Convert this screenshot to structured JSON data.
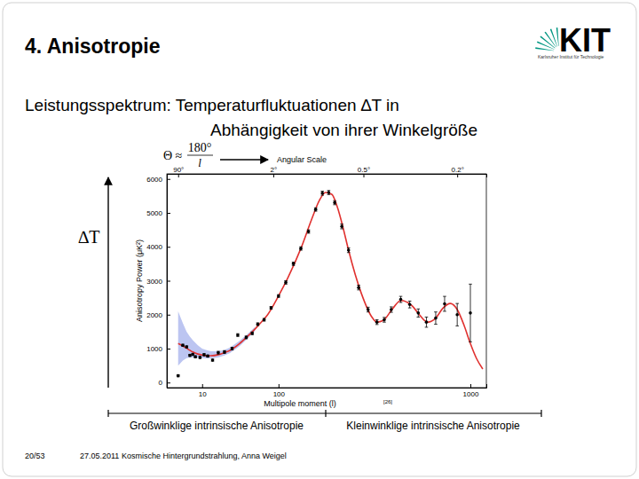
{
  "slide": {
    "title": "4. Anisotropie",
    "subtitle_lines": [
      "Leistungsspektrum: Temperaturfluktuationen ∆T in",
      "Abhängigkeit von ihrer Winkelgröße"
    ],
    "logo": {
      "text": "KIT",
      "caption": "Karlsruher Institut für Technologie"
    },
    "arrow_label": "∆T",
    "scale_labels": [
      "Großwinklige intrinsische Anisotropie",
      "Kleinwinklige intrinsische Anisotropie"
    ],
    "footer": {
      "page": "20/53",
      "text": "27.05.2011 Kosmische Hintergrundstrahlung, Anna Weigel"
    }
  },
  "chart_data": {
    "type": "line",
    "xlabel": "Multipole moment (l)",
    "ylabel": "Anisotropy Power (μK²)",
    "x2label": "Angular Scale",
    "annotations": {
      "formula_left": "Θ ≈",
      "formula_num": "180°",
      "formula_den": "l",
      "source": "[26]"
    },
    "xlim": [
      0.5,
      1130
    ],
    "xticks": [
      10,
      100,
      1000
    ],
    "x2lim": [
      0.5,
      1130
    ],
    "x2ticks": [
      {
        "value": 2,
        "label": "90°"
      },
      {
        "value": 90,
        "label": "2°"
      },
      {
        "value": 360,
        "label": "0.5°"
      },
      {
        "value": 900,
        "label": "0.2°"
      }
    ],
    "ylim": [
      -150,
      6150
    ],
    "yticks": [
      0,
      1000,
      2000,
      3000,
      4000,
      5000,
      6000
    ],
    "grid": false,
    "series": [
      {
        "type": "scatter",
        "color": "#000000",
        "marker": "circle",
        "x": [
          2,
          3,
          4,
          5,
          6,
          7,
          9,
          11,
          13,
          16,
          20,
          25,
          32,
          38,
          48,
          56,
          64,
          74,
          86,
          100,
          115,
          132,
          150,
          170,
          190,
          210,
          230,
          250,
          275,
          300,
          340,
          380,
          420,
          455,
          490,
          540,
          590,
          640,
          690,
          750,
          810,
          900,
          1000
        ],
        "values": [
          200,
          1100,
          1050,
          800,
          830,
          760,
          740,
          820,
          780,
          660,
          880,
          900,
          1000,
          1400,
          1330,
          1450,
          1720,
          1850,
          2200,
          2550,
          2950,
          3500,
          3950,
          4450,
          5100,
          5580,
          5600,
          5300,
          4600,
          3900,
          2800,
          2150,
          1780,
          1850,
          2150,
          2450,
          2300,
          2050,
          1780,
          1900,
          2320,
          2000,
          2050
        ],
        "errors": [
          30,
          30,
          30,
          30,
          30,
          30,
          30,
          30,
          30,
          30,
          40,
          40,
          40,
          40,
          40,
          40,
          40,
          40,
          40,
          40,
          50,
          50,
          50,
          50,
          50,
          60,
          60,
          60,
          70,
          70,
          70,
          70,
          70,
          70,
          80,
          90,
          100,
          120,
          150,
          180,
          220,
          330,
          850
        ]
      },
      {
        "type": "line",
        "color": "#e0312f",
        "line_style": "solid",
        "x": [
          2,
          3,
          4,
          5,
          6,
          8,
          10,
          12,
          15,
          20,
          25,
          30,
          40,
          50,
          60,
          70,
          80,
          100,
          120,
          150,
          180,
          200,
          220,
          240,
          260,
          280,
          300,
          350,
          400,
          420,
          450,
          500,
          540,
          600,
          650,
          680,
          700,
          750,
          800,
          850,
          900,
          950,
          1000,
          1050,
          1100
        ],
        "values": [
          1150,
          1080,
          1010,
          950,
          900,
          840,
          810,
          795,
          790,
          820,
          880,
          950,
          1150,
          1370,
          1580,
          1790,
          2000,
          2550,
          3100,
          3950,
          4850,
          5350,
          5600,
          5550,
          5150,
          4550,
          3900,
          2650,
          1900,
          1780,
          1830,
          2200,
          2420,
          2280,
          1980,
          1820,
          1780,
          1900,
          2200,
          2330,
          2150,
          1700,
          1150,
          700,
          400
        ],
        "band_lower": [
          500,
          650,
          720,
          740,
          740,
          730,
          720,
          710,
          710,
          740,
          800,
          870,
          1070,
          1300,
          1520,
          null,
          null,
          null,
          null,
          null,
          null,
          null,
          null,
          null,
          null,
          null,
          null,
          null,
          null,
          null,
          null,
          null,
          null,
          null,
          null,
          null,
          null,
          null,
          null,
          null,
          null,
          null,
          null,
          null,
          null
        ],
        "band_upper": [
          2100,
          1750,
          1500,
          1350,
          1250,
          1100,
          1000,
          960,
          920,
          920,
          960,
          1030,
          1230,
          1440,
          1640,
          null,
          null,
          null,
          null,
          null,
          null,
          null,
          null,
          null,
          null,
          null,
          null,
          null,
          null,
          null,
          null,
          null,
          null,
          null,
          null,
          null,
          null,
          null,
          null,
          null,
          null,
          null,
          null,
          null,
          null
        ]
      }
    ]
  }
}
